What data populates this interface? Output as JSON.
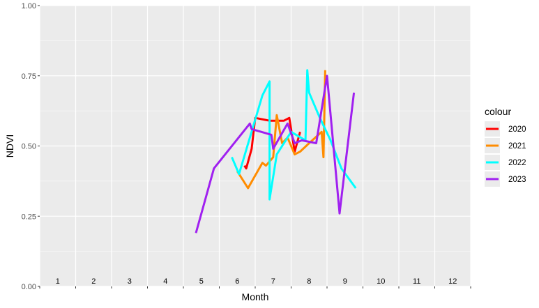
{
  "chart_data": {
    "type": "line",
    "title": "",
    "xlabel": "Month",
    "ylabel": "NDVI",
    "xlim": [
      0.5,
      12.5
    ],
    "ylim": [
      0,
      1
    ],
    "y_ticks": [
      0,
      0.25,
      0.5,
      0.75,
      1
    ],
    "y_tick_labels": [
      "0.00",
      "0.25",
      "0.50",
      "0.75",
      "1.00"
    ],
    "x_categories": [
      "1",
      "2",
      "3",
      "4",
      "5",
      "6",
      "7",
      "8",
      "9",
      "10",
      "11",
      "12"
    ],
    "grid": true,
    "legend": {
      "title": "colour",
      "position": "right"
    },
    "series": [
      {
        "name": "2020",
        "color": "#ff0000",
        "points": [
          [
            6.2,
            0.43
          ],
          [
            6.25,
            0.42
          ],
          [
            6.4,
            0.49
          ],
          [
            6.5,
            0.6
          ],
          [
            6.9,
            0.59
          ],
          [
            7.15,
            0.59
          ],
          [
            7.3,
            0.59
          ],
          [
            7.45,
            0.6
          ],
          [
            7.6,
            0.48
          ],
          [
            7.75,
            0.55
          ]
        ]
      },
      {
        "name": "2021",
        "color": "#ff8c00",
        "points": [
          [
            6.0,
            0.41
          ],
          [
            6.3,
            0.35
          ],
          [
            6.7,
            0.44
          ],
          [
            6.8,
            0.43
          ],
          [
            7.0,
            0.46
          ],
          [
            7.1,
            0.61
          ],
          [
            7.25,
            0.51
          ],
          [
            7.4,
            0.53
          ],
          [
            7.6,
            0.47
          ],
          [
            7.75,
            0.48
          ],
          [
            8.0,
            0.51
          ],
          [
            8.35,
            0.55
          ],
          [
            8.4,
            0.46
          ],
          [
            8.45,
            0.77
          ]
        ]
      },
      {
        "name": "2022",
        "color": "#00ffff",
        "points": [
          [
            5.85,
            0.46
          ],
          [
            6.05,
            0.4
          ],
          [
            6.7,
            0.68
          ],
          [
            6.9,
            0.73
          ],
          [
            6.9,
            0.31
          ],
          [
            7.1,
            0.47
          ],
          [
            7.5,
            0.55
          ],
          [
            7.9,
            0.52
          ],
          [
            7.95,
            0.77
          ],
          [
            8.0,
            0.69
          ],
          [
            8.3,
            0.6
          ],
          [
            8.6,
            0.52
          ],
          [
            8.9,
            0.42
          ],
          [
            9.3,
            0.35
          ]
        ]
      },
      {
        "name": "2023",
        "color": "#a020f0",
        "points": [
          [
            4.85,
            0.19
          ],
          [
            5.35,
            0.42
          ],
          [
            6.35,
            0.58
          ],
          [
            6.4,
            0.56
          ],
          [
            6.95,
            0.54
          ],
          [
            7.0,
            0.49
          ],
          [
            7.4,
            0.58
          ],
          [
            7.6,
            0.51
          ],
          [
            7.8,
            0.52
          ],
          [
            8.2,
            0.51
          ],
          [
            8.5,
            0.75
          ],
          [
            8.85,
            0.26
          ],
          [
            9.25,
            0.69
          ]
        ]
      }
    ]
  }
}
